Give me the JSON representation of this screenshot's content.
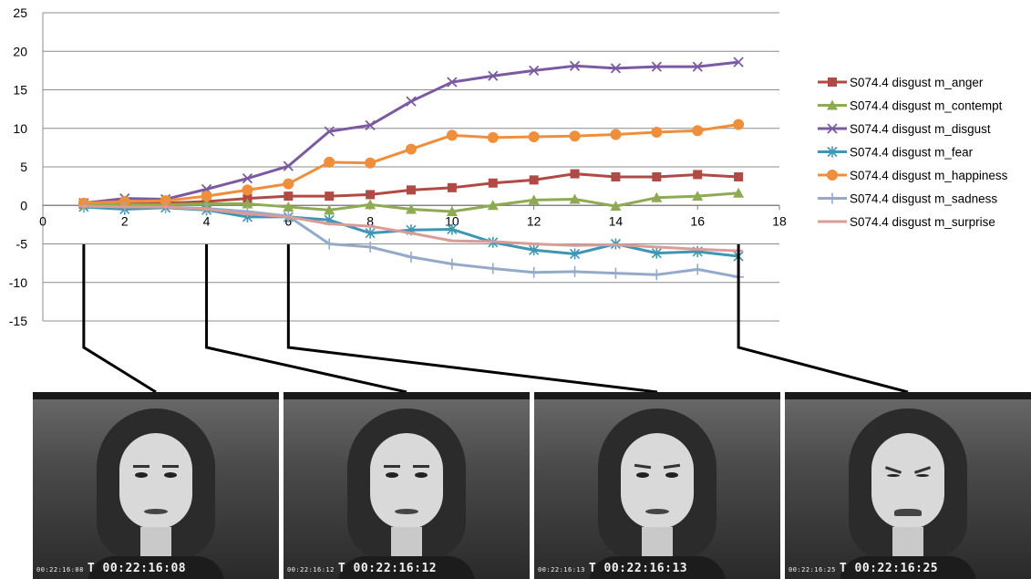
{
  "chart_data": {
    "type": "line",
    "title": "",
    "xlabel": "",
    "ylabel": "",
    "xlim": [
      0,
      18
    ],
    "ylim": [
      -15,
      25
    ],
    "x_ticks": [
      0,
      2,
      4,
      6,
      8,
      10,
      12,
      14,
      16,
      18
    ],
    "y_ticks": [
      25,
      20,
      15,
      10,
      5,
      0,
      -5,
      -10,
      -15
    ],
    "grid": "horizontal",
    "legend_position": "right",
    "x": [
      1,
      2,
      3,
      4,
      5,
      6,
      7,
      8,
      9,
      10,
      11,
      12,
      13,
      14,
      15,
      16,
      17
    ],
    "series": [
      {
        "name": "S074.4 disgust m_anger",
        "color": "#b04a45",
        "marker": "square",
        "values": [
          0.2,
          0.3,
          0.3,
          0.5,
          0.9,
          1.2,
          1.2,
          1.4,
          2.0,
          2.3,
          2.9,
          3.3,
          4.1,
          3.7,
          3.7,
          4.0,
          3.7
        ]
      },
      {
        "name": "S074.4 disgust m_contempt",
        "color": "#8eaa52",
        "marker": "triangle",
        "values": [
          0.1,
          0.1,
          0.1,
          0.2,
          0.2,
          -0.2,
          -0.6,
          0.1,
          -0.5,
          -0.8,
          0.0,
          0.7,
          0.8,
          -0.1,
          1.0,
          1.2,
          1.6
        ]
      },
      {
        "name": "S074.4 disgust m_disgust",
        "color": "#7b5aa1",
        "marker": "x",
        "values": [
          0.3,
          0.9,
          0.8,
          2.1,
          3.5,
          5.1,
          9.6,
          10.4,
          13.5,
          16.0,
          16.8,
          17.5,
          18.1,
          17.8,
          18.0,
          18.0,
          18.6
        ]
      },
      {
        "name": "S074.4 disgust m_fear",
        "color": "#3f96b3",
        "marker": "asterisk",
        "values": [
          -0.2,
          -0.5,
          -0.3,
          -0.6,
          -1.5,
          -1.5,
          -1.9,
          -3.6,
          -3.2,
          -3.1,
          -4.8,
          -5.8,
          -6.3,
          -5.0,
          -6.2,
          -6.0,
          -6.6
        ]
      },
      {
        "name": "S074.4 disgust m_happiness",
        "color": "#ef8e3b",
        "marker": "circle",
        "values": [
          0.3,
          0.5,
          0.6,
          1.2,
          2.0,
          2.8,
          5.6,
          5.5,
          7.3,
          9.1,
          8.8,
          8.9,
          9.0,
          9.2,
          9.5,
          9.7,
          10.5
        ]
      },
      {
        "name": "S074.4 disgust m_sadness",
        "color": "#95aac9",
        "marker": "plus",
        "values": [
          -0.1,
          -0.2,
          -0.2,
          -0.4,
          -0.8,
          -1.4,
          -5.0,
          -5.4,
          -6.7,
          -7.6,
          -8.2,
          -8.7,
          -8.6,
          -8.8,
          -9.0,
          -8.3,
          -9.3
        ]
      },
      {
        "name": "S074.4 disgust m_surprise",
        "color": "#d99c97",
        "marker": "dash",
        "values": [
          -0.1,
          -0.2,
          -0.2,
          -0.5,
          -1.1,
          -1.5,
          -2.4,
          -2.7,
          -3.6,
          -4.6,
          -4.7,
          -5.0,
          -5.2,
          -5.1,
          -5.4,
          -5.7,
          -5.9
        ]
      }
    ]
  },
  "frames": [
    {
      "timecode_small": "00:22:16:08",
      "timecode": "T 00:22:16:08",
      "x_value": 1
    },
    {
      "timecode_small": "00:22:16:12",
      "timecode": "T 00:22:16:12",
      "x_value": 4
    },
    {
      "timecode_small": "00:22:16:13",
      "timecode": "T 00:22:16:13",
      "x_value": 6
    },
    {
      "timecode_small": "00:22:16:25",
      "timecode": "T 00:22:16:25",
      "x_value": 17
    }
  ]
}
